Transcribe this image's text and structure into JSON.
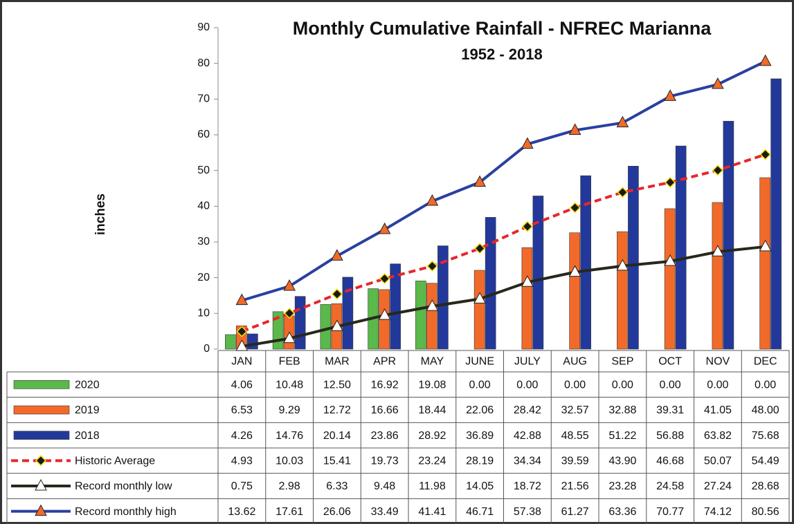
{
  "chart_data": {
    "type": "bar",
    "title": "Monthly Cumulative Rainfall - NFREC Marianna",
    "subtitle": "1952 - 2018",
    "y_label": "inches",
    "categories": [
      "JAN",
      "FEB",
      "MAR",
      "APR",
      "MAY",
      "JUNE",
      "JULY",
      "AUG",
      "SEP",
      "OCT",
      "NOV",
      "DEC"
    ],
    "ylim": [
      0,
      90
    ],
    "yticks": [
      0,
      10,
      20,
      30,
      40,
      50,
      60,
      70,
      80,
      90
    ],
    "grid": false,
    "series": [
      {
        "name": "2020",
        "type": "bar",
        "color": "#5bb84a",
        "values": [
          4.06,
          10.48,
          12.5,
          16.92,
          19.08,
          0,
          0,
          0,
          0,
          0,
          0,
          0
        ],
        "value_labels": [
          "4.06",
          "10.48",
          "12.50",
          "16.92",
          "19.08",
          "0.00",
          "0.00",
          "0.00",
          "0.00",
          "0.00",
          "0.00",
          "0.00"
        ]
      },
      {
        "name": "2019",
        "type": "bar",
        "color": "#f26a2a",
        "values": [
          6.53,
          9.29,
          12.72,
          16.66,
          18.44,
          22.06,
          28.42,
          32.57,
          32.88,
          39.31,
          41.05,
          48
        ],
        "value_labels": [
          "6.53",
          "9.29",
          "12.72",
          "16.66",
          "18.44",
          "22.06",
          "28.42",
          "32.57",
          "32.88",
          "39.31",
          "41.05",
          "48.00"
        ]
      },
      {
        "name": "2018",
        "type": "bar",
        "color": "#22399b",
        "values": [
          4.26,
          14.76,
          20.14,
          23.86,
          28.92,
          36.89,
          42.88,
          48.55,
          51.22,
          56.88,
          63.82,
          75.68
        ],
        "value_labels": [
          "4.26",
          "14.76",
          "20.14",
          "23.86",
          "28.92",
          "36.89",
          "42.88",
          "48.55",
          "51.22",
          "56.88",
          "63.82",
          "75.68"
        ]
      },
      {
        "name": "Historic Average",
        "type": "line",
        "color": "#e8262c",
        "dashed": true,
        "marker": "diamond",
        "marker_color": "#1a1a1a",
        "values": [
          4.93,
          10.03,
          15.41,
          19.73,
          23.24,
          28.19,
          34.34,
          39.59,
          43.9,
          46.68,
          50.07,
          54.49
        ],
        "value_labels": [
          "4.93",
          "10.03",
          "15.41",
          "19.73",
          "23.24",
          "28.19",
          "34.34",
          "39.59",
          "43.90",
          "46.68",
          "50.07",
          "54.49"
        ]
      },
      {
        "name": "Record monthly low",
        "type": "line",
        "color": "#27281a",
        "dashed": false,
        "marker": "triangle",
        "marker_color": "#ffffff",
        "values": [
          0.75,
          2.98,
          6.33,
          9.48,
          11.98,
          14.05,
          18.72,
          21.56,
          23.28,
          24.58,
          27.24,
          28.68
        ],
        "value_labels": [
          "0.75",
          "2.98",
          "6.33",
          "9.48",
          "11.98",
          "14.05",
          "18.72",
          "21.56",
          "23.28",
          "24.58",
          "27.24",
          "28.68"
        ]
      },
      {
        "name": "Record monthly high",
        "type": "line",
        "color": "#2a40a0",
        "dashed": false,
        "marker": "triangle",
        "marker_color": "#f26a2a",
        "values": [
          13.62,
          17.61,
          26.06,
          33.49,
          41.41,
          46.71,
          57.38,
          61.27,
          63.36,
          70.77,
          74.12,
          80.56
        ],
        "value_labels": [
          "13.62",
          "17.61",
          "26.06",
          "33.49",
          "41.41",
          "46.71",
          "57.38",
          "61.27",
          "63.36",
          "70.77",
          "74.12",
          "80.56"
        ]
      }
    ]
  }
}
